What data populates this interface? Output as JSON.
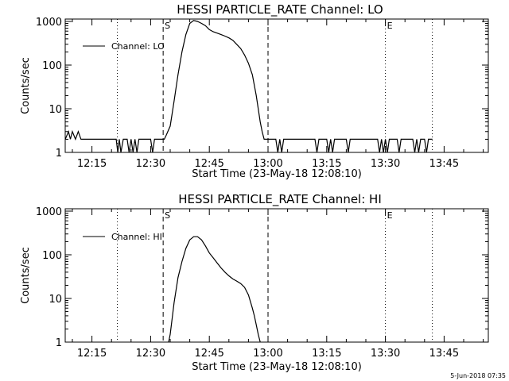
{
  "chart_data": [
    {
      "type": "line",
      "title": "HESSI PARTICLE_RATE Channel: LO",
      "xlabel": "Start Time (23-May-18 12:08:10)",
      "ylabel": "Counts/sec",
      "x_tick_labels": [
        "12:15",
        "12:30",
        "12:45",
        "13:00",
        "13:15",
        "13:30",
        "13:45"
      ],
      "x_ticks_min": [
        15,
        30,
        45,
        60,
        75,
        90,
        105
      ],
      "xlim_min": [
        8.17,
        116.3
      ],
      "y_scale": "log",
      "ylim": [
        1,
        1000
      ],
      "y_tick_labels": [
        "1",
        "10",
        "100",
        "1000"
      ],
      "y_tick_values": [
        1,
        10,
        100,
        1000
      ],
      "grid": false,
      "legend": "top-left",
      "markers": [
        {
          "x_min": 33.2,
          "label": "S",
          "style": "dashed"
        },
        {
          "x_min": 60.0,
          "label": "",
          "style": "dashed"
        },
        {
          "x_min": 90.0,
          "label": "E",
          "style": "dotted"
        },
        {
          "x_min": 21.5,
          "label": "",
          "style": "dotted"
        },
        {
          "x_min": 102.0,
          "label": "",
          "style": "dotted"
        }
      ],
      "series": [
        {
          "name": "Channel: LO",
          "x": [
            8.2,
            9.0,
            9.5,
            10.0,
            10.8,
            11.5,
            12.2,
            13.0,
            13.8,
            14.5,
            15.5,
            16.5,
            17.5,
            18.5,
            19.5,
            20.5,
            21.2,
            21.6,
            22.0,
            22.4,
            23.0,
            24.0,
            24.5,
            25.0,
            25.5,
            26.0,
            26.5,
            27.0,
            27.5,
            28.0,
            29.0,
            30.0,
            30.5,
            31.0,
            31.5,
            32.0,
            32.5,
            33.0,
            33.5,
            34.0,
            35.0,
            36.0,
            37.0,
            38.0,
            39.0,
            40.0,
            41.0,
            42.0,
            43.0,
            44.0,
            45.0,
            46.0,
            47.0,
            48.0,
            49.0,
            50.0,
            51.0,
            52.0,
            53.0,
            54.0,
            55.0,
            56.0,
            57.0,
            57.5,
            58.0,
            58.5,
            59.0,
            59.5,
            60.0,
            61.0,
            62.0,
            62.5,
            63.0,
            63.5,
            64.0,
            65.0,
            66.0,
            67.0,
            68.0,
            69.0,
            70.0,
            71.0,
            72.0,
            72.5,
            73.0,
            74.0,
            75.0,
            75.5,
            76.0,
            76.5,
            77.0,
            78.0,
            79.0,
            80.0,
            80.5,
            81.0,
            82.0,
            83.0,
            84.0,
            85.0,
            86.0,
            87.0,
            88.0,
            88.5,
            89.0,
            89.5,
            90.0,
            90.5,
            91.0,
            92.0,
            93.0,
            93.5,
            94.0,
            95.0,
            96.0,
            97.0,
            97.5,
            98.0,
            98.5,
            99.0,
            100.0,
            100.5,
            101.0,
            101.5,
            102.0
          ],
          "y": [
            2,
            3,
            2,
            3,
            2,
            3,
            2,
            2,
            2,
            2,
            2,
            2,
            2,
            2,
            2,
            2,
            2,
            1,
            2,
            1,
            2,
            2,
            1,
            2,
            1,
            2,
            1,
            2,
            2,
            2,
            2,
            2,
            1,
            2,
            2,
            2,
            2,
            2,
            2,
            2.5,
            4,
            15,
            60,
            200,
            500,
            900,
            1050,
            1000,
            900,
            800,
            650,
            580,
            540,
            500,
            460,
            420,
            370,
            300,
            240,
            170,
            110,
            60,
            20,
            10,
            5,
            3,
            2,
            2,
            2,
            2,
            2,
            1,
            2,
            1,
            2,
            2,
            2,
            2,
            2,
            2,
            2,
            2,
            2,
            1,
            2,
            2,
            2,
            1,
            2,
            1,
            2,
            2,
            2,
            2,
            1,
            2,
            2,
            2,
            2,
            2,
            2,
            2,
            2,
            1,
            2,
            1,
            2,
            1,
            2,
            2,
            2,
            1,
            2,
            2,
            2,
            2,
            1,
            2,
            1,
            2,
            2,
            1,
            2,
            2,
            2
          ]
        }
      ]
    },
    {
      "type": "line",
      "title": "HESSI PARTICLE_RATE Channel: HI",
      "xlabel": "Start Time (23-May-18 12:08:10)",
      "ylabel": "Counts/sec",
      "x_tick_labels": [
        "12:15",
        "12:30",
        "12:45",
        "13:00",
        "13:15",
        "13:30",
        "13:45"
      ],
      "x_ticks_min": [
        15,
        30,
        45,
        60,
        75,
        90,
        105
      ],
      "xlim_min": [
        8.17,
        116.3
      ],
      "y_scale": "log",
      "ylim": [
        1,
        1000
      ],
      "y_tick_labels": [
        "1",
        "10",
        "100",
        "1000"
      ],
      "y_tick_values": [
        1,
        10,
        100,
        1000
      ],
      "grid": false,
      "legend": "top-left",
      "markers": [
        {
          "x_min": 33.2,
          "label": "S",
          "style": "dashed"
        },
        {
          "x_min": 60.0,
          "label": "",
          "style": "dashed"
        },
        {
          "x_min": 90.0,
          "label": "E",
          "style": "dotted"
        },
        {
          "x_min": 21.5,
          "label": "",
          "style": "dotted"
        },
        {
          "x_min": 102.0,
          "label": "",
          "style": "dotted"
        }
      ],
      "series": [
        {
          "name": "Channel: HI",
          "x": [
            34.6,
            35.0,
            36.0,
            37.0,
            38.0,
            39.0,
            40.0,
            41.0,
            42.0,
            43.0,
            44.0,
            45.0,
            46.0,
            47.0,
            48.0,
            49.0,
            50.0,
            51.0,
            52.0,
            53.0,
            54.0,
            55.0,
            56.0,
            56.5,
            57.0,
            57.5,
            58.0
          ],
          "y": [
            1,
            1.5,
            8,
            30,
            70,
            140,
            220,
            260,
            260,
            220,
            160,
            110,
            85,
            65,
            50,
            40,
            33,
            28,
            25,
            22,
            18,
            12,
            6,
            4,
            2.5,
            1.5,
            1
          ]
        }
      ]
    }
  ],
  "footer": {
    "timestamp": "5-Jun-2018 07:35"
  }
}
